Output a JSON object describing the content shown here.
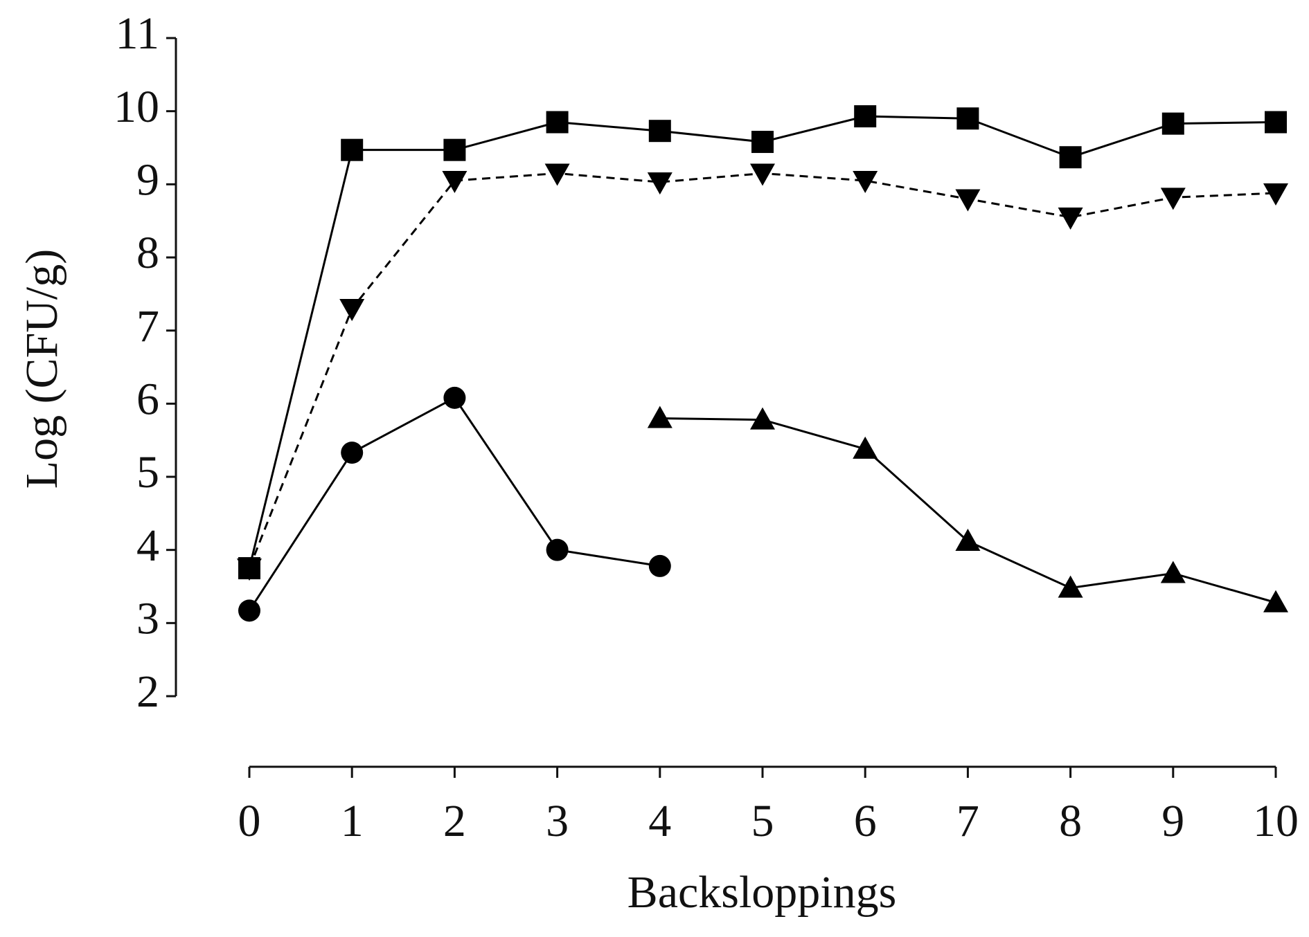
{
  "chart_data": {
    "type": "line",
    "x_label": "Backsloppings",
    "y_label": "Log (CFU/g)",
    "x": [
      0,
      1,
      2,
      3,
      4,
      5,
      6,
      7,
      8,
      9,
      10
    ],
    "series": [
      {
        "color": "#000000",
        "marker": "square",
        "dashed": false,
        "values": [
          3.75,
          9.47,
          9.47,
          9.85,
          9.73,
          9.58,
          9.93,
          9.9,
          9.37,
          9.83,
          9.85
        ]
      },
      {
        "color": "#000000",
        "marker": "triangle-down",
        "dashed": true,
        "values": [
          3.75,
          7.3,
          9.05,
          9.15,
          9.03,
          9.15,
          9.05,
          8.8,
          8.55,
          8.82,
          8.88
        ]
      },
      {
        "color": "#000000",
        "marker": "circle",
        "dashed": false,
        "values": [
          3.17,
          5.33,
          6.08,
          4.0,
          3.78,
          null,
          null,
          null,
          null,
          null,
          null
        ]
      },
      {
        "color": "#000000",
        "marker": "triangle-up",
        "dashed": false,
        "values": [
          null,
          null,
          null,
          null,
          5.8,
          5.78,
          5.38,
          4.12,
          3.48,
          3.68,
          3.28
        ]
      }
    ],
    "xlim": [
      0,
      10
    ],
    "xticks": [
      0,
      1,
      2,
      3,
      4,
      5,
      6,
      7,
      8,
      9,
      10
    ],
    "ylim": [
      2,
      11
    ],
    "yticks": [
      2,
      3,
      4,
      5,
      6,
      7,
      8,
      9,
      10,
      11
    ],
    "grid": false
  }
}
